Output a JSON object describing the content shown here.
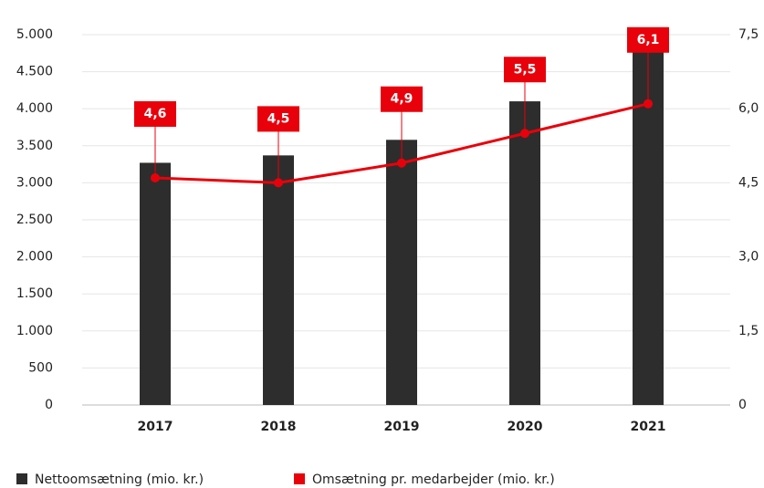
{
  "chart_data": {
    "type": "bar",
    "categories": [
      "2017",
      "2018",
      "2019",
      "2020",
      "2021"
    ],
    "series": [
      {
        "name": "Nettoomsætning (mio. kr.)",
        "color": "#2d2d2d",
        "type": "bar",
        "values": [
          3270,
          3370,
          3580,
          4100,
          4800
        ]
      },
      {
        "name": "Omsætning pr. medarbejder (mio. kr.)",
        "color": "#e8000b",
        "type": "line",
        "axis": "y2",
        "values": [
          4.6,
          4.5,
          4.9,
          5.5,
          6.1
        ],
        "value_labels": [
          "4,6",
          "4,5",
          "4,9",
          "5,5",
          "6,1"
        ]
      }
    ],
    "ylim": [
      0,
      5000
    ],
    "yticks": [
      0,
      500,
      {
        "value": 1000,
        "label": "1.000"
      },
      {
        "value": 1500,
        "label": "1.500"
      },
      {
        "value": 2000,
        "label": "2.000"
      },
      {
        "value": 2500,
        "label": "2.500"
      },
      {
        "value": 3000,
        "label": "3.000"
      },
      {
        "value": 3500,
        "label": "3.500"
      },
      {
        "value": 4000,
        "label": "4.000"
      },
      {
        "value": 4500,
        "label": "4.500"
      },
      {
        "value": 5000,
        "label": "5.000"
      }
    ],
    "y2lim": [
      0,
      7.5
    ],
    "y2ticks": [
      0,
      {
        "value": 1.5,
        "label": "1,5"
      },
      {
        "value": 3,
        "label": "3,0"
      },
      {
        "value": 4.5,
        "label": "4,5"
      },
      {
        "value": 6,
        "label": "6,0"
      },
      {
        "value": 7.5,
        "label": "7,5"
      }
    ],
    "grid": true,
    "legend": "bottom-left"
  }
}
